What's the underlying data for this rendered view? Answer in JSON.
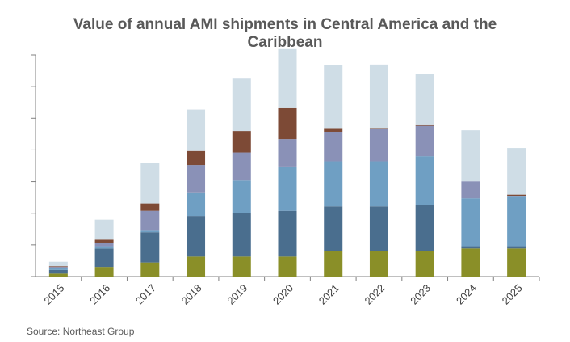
{
  "chart_data": {
    "type": "bar",
    "stacked": true,
    "title_lines": [
      "Value of annual AMI shipments in Central America and the",
      "Caribbean"
    ],
    "xlabel": "",
    "ylabel": "",
    "source": "Source: Northeast Group",
    "categories": [
      "2015",
      "2016",
      "2017",
      "2018",
      "2019",
      "2020",
      "2021",
      "2022",
      "2023",
      "2024",
      "2025"
    ],
    "ylim": [
      0,
      300
    ],
    "y_tick_count": 7,
    "y_tick_labels_shown": false,
    "grid": false,
    "legend": "none",
    "series": [
      {
        "color": "#8a8f28",
        "values": [
          4,
          13,
          19,
          27,
          27,
          27,
          35,
          35,
          35,
          38,
          38
        ]
      },
      {
        "color": "#4a6e8e",
        "values": [
          5,
          25,
          41,
          55,
          59,
          62,
          60,
          60,
          62,
          3,
          3
        ]
      },
      {
        "color": "#6f9fc3",
        "values": [
          2,
          3,
          2,
          31,
          44,
          60,
          61,
          61,
          66,
          65,
          67
        ]
      },
      {
        "color": "#8a91b7",
        "values": [
          2,
          5,
          27,
          38,
          38,
          37,
          40,
          44,
          41,
          23,
          1
        ]
      },
      {
        "color": "#7d4a36",
        "values": [
          1,
          4,
          10,
          19,
          29,
          43,
          5,
          1,
          2,
          0,
          2
        ]
      },
      {
        "color": "#cfdde6",
        "values": [
          6,
          27,
          55,
          56,
          71,
          80,
          85,
          86,
          68,
          69,
          63
        ]
      }
    ]
  }
}
